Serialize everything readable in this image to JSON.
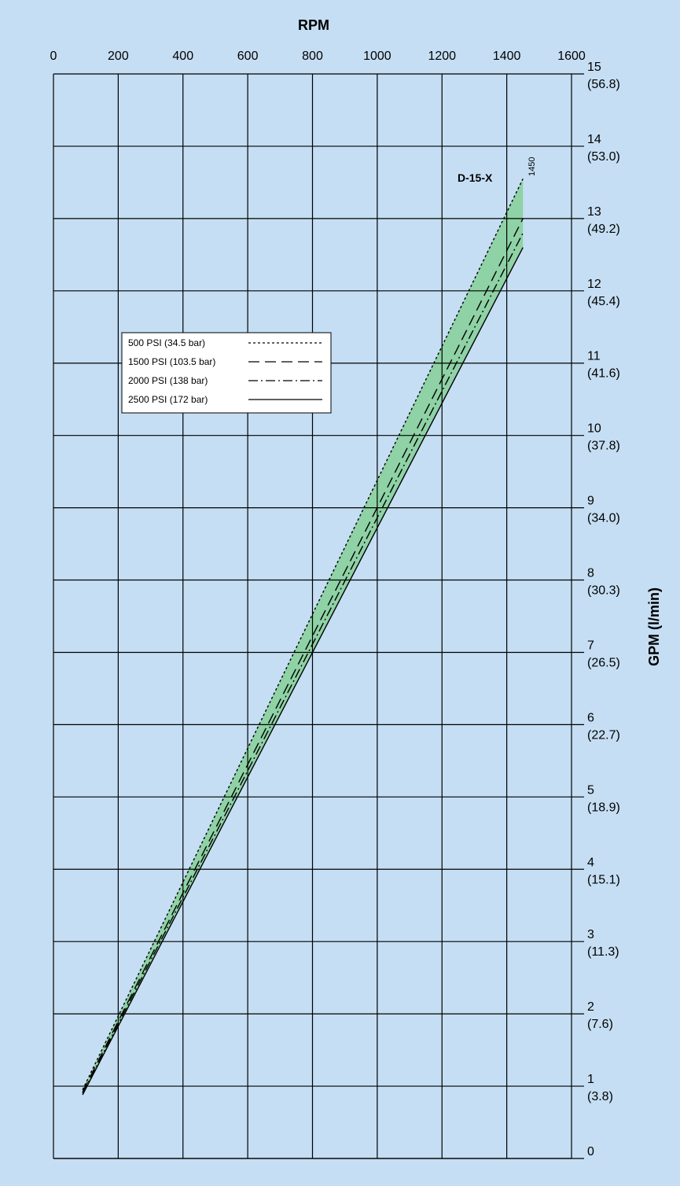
{
  "chart_data": {
    "type": "line",
    "title": "",
    "xlabel": "RPM",
    "ylabel": "GPM (l/min)",
    "xlim": [
      0,
      1600
    ],
    "ylim": [
      0,
      15
    ],
    "x_ticks": [
      "0",
      "200",
      "400",
      "600",
      "800",
      "1000",
      "1200",
      "1400",
      "1600"
    ],
    "y_ticks": [
      {
        "value": 15,
        "gpm": "15",
        "lpm": "(56.8)"
      },
      {
        "value": 14,
        "gpm": "14",
        "lpm": "(53.0)"
      },
      {
        "value": 13,
        "gpm": "13",
        "lpm": "(49.2)"
      },
      {
        "value": 12,
        "gpm": "12",
        "lpm": "(45.4)"
      },
      {
        "value": 11,
        "gpm": "11",
        "lpm": "(41.6)"
      },
      {
        "value": 10,
        "gpm": "10",
        "lpm": "(37.8)"
      },
      {
        "value": 9,
        "gpm": "9",
        "lpm": "(34.0)"
      },
      {
        "value": 8,
        "gpm": "8",
        "lpm": "(30.3)"
      },
      {
        "value": 7,
        "gpm": "7",
        "lpm": "(26.5)"
      },
      {
        "value": 6,
        "gpm": "6",
        "lpm": "(22.7)"
      },
      {
        "value": 5,
        "gpm": "5",
        "lpm": "(18.9)"
      },
      {
        "value": 4,
        "gpm": "4",
        "lpm": "(15.1)"
      },
      {
        "value": 3,
        "gpm": "3",
        "lpm": "(11.3)"
      },
      {
        "value": 2,
        "gpm": "2",
        "lpm": "(7.6)"
      },
      {
        "value": 1,
        "gpm": "1",
        "lpm": "(3.8)"
      },
      {
        "value": 0,
        "gpm": "0",
        "lpm": ""
      }
    ],
    "grid": true,
    "legend_position": "left, near middle",
    "model_label": "D-15-X",
    "max_rpm_label": "1450",
    "series": [
      {
        "name": "500 PSI (34.5 bar)",
        "style": "dotted",
        "x": [
          90,
          1450
        ],
        "y": [
          0.95,
          13.55
        ]
      },
      {
        "name": "1500 PSI (103.5 bar)",
        "style": "long-dash",
        "x": [
          90,
          1450
        ],
        "y": [
          0.92,
          13.0
        ]
      },
      {
        "name": "2000 PSI (138 bar)",
        "style": "dash-dot",
        "x": [
          90,
          1450
        ],
        "y": [
          0.9,
          12.8
        ]
      },
      {
        "name": "2500 PSI (172 bar)",
        "style": "solid",
        "x": [
          90,
          1450
        ],
        "y": [
          0.88,
          12.6
        ]
      }
    ],
    "colors": {
      "background": "#c5def3",
      "band_fill": "#8ed2a5",
      "line": "#000000"
    }
  }
}
